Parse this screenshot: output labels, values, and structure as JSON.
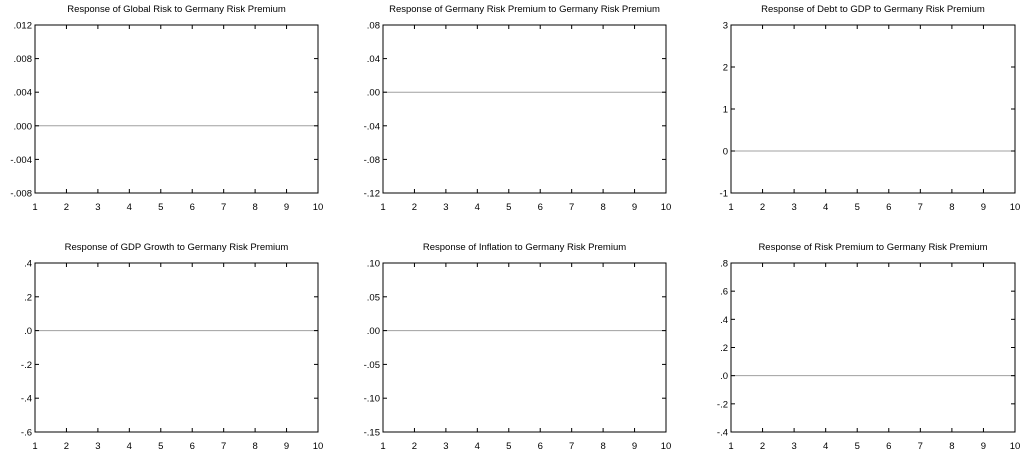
{
  "chart_data": [
    {
      "type": "line",
      "title": "Response of Global Risk to Germany Risk Premium",
      "x": [
        1,
        2,
        3,
        4,
        5,
        6,
        7,
        8,
        9,
        10
      ],
      "xlim": [
        1,
        10
      ],
      "ylim": [
        -0.008,
        0.012
      ],
      "y_ticks": [
        ".012",
        ".008",
        ".004",
        ".000",
        "-.004",
        "-.008"
      ],
      "y_tick_values": [
        0.012,
        0.008,
        0.004,
        0.0,
        -0.004,
        -0.008
      ],
      "x_ticks": [
        "1",
        "2",
        "3",
        "4",
        "5",
        "6",
        "7",
        "8",
        "9",
        "10"
      ],
      "zero_line": 0,
      "series": [],
      "grid": false
    },
    {
      "type": "line",
      "title": "Response of Germany Risk Premium to Germany Risk Premium",
      "x": [
        1,
        2,
        3,
        4,
        5,
        6,
        7,
        8,
        9,
        10
      ],
      "xlim": [
        1,
        10
      ],
      "ylim": [
        -0.12,
        0.08
      ],
      "y_ticks": [
        ".08",
        ".04",
        ".00",
        "-.04",
        "-.08",
        "-.12"
      ],
      "y_tick_values": [
        0.08,
        0.04,
        0.0,
        -0.04,
        -0.08,
        -0.12
      ],
      "x_ticks": [
        "1",
        "2",
        "3",
        "4",
        "5",
        "6",
        "7",
        "8",
        "9",
        "10"
      ],
      "zero_line": 0,
      "series": [],
      "grid": false
    },
    {
      "type": "line",
      "title": "Response of Debt to GDP to Germany Risk Premium",
      "x": [
        1,
        2,
        3,
        4,
        5,
        6,
        7,
        8,
        9,
        10
      ],
      "xlim": [
        1,
        10
      ],
      "ylim": [
        -1,
        3
      ],
      "y_ticks": [
        "3",
        "2",
        "1",
        "0",
        "-1"
      ],
      "y_tick_values": [
        3,
        2,
        1,
        0,
        -1
      ],
      "x_ticks": [
        "1",
        "2",
        "3",
        "4",
        "5",
        "6",
        "7",
        "8",
        "9",
        "10"
      ],
      "zero_line": 0,
      "series": [],
      "grid": false
    },
    {
      "type": "line",
      "title": "Response of GDP Growth to Germany Risk Premium",
      "x": [
        1,
        2,
        3,
        4,
        5,
        6,
        7,
        8,
        9,
        10
      ],
      "xlim": [
        1,
        10
      ],
      "ylim": [
        -0.6,
        0.4
      ],
      "y_ticks": [
        ".4",
        ".2",
        ".0",
        "-.2",
        "-.4",
        "-.6"
      ],
      "y_tick_values": [
        0.4,
        0.2,
        0.0,
        -0.2,
        -0.4,
        -0.6
      ],
      "x_ticks": [
        "1",
        "2",
        "3",
        "4",
        "5",
        "6",
        "7",
        "8",
        "9",
        "10"
      ],
      "zero_line": 0,
      "series": [],
      "grid": false
    },
    {
      "type": "line",
      "title": "Response of Inflation to Germany Risk Premium",
      "x": [
        1,
        2,
        3,
        4,
        5,
        6,
        7,
        8,
        9,
        10
      ],
      "xlim": [
        1,
        10
      ],
      "ylim": [
        -0.15,
        0.1
      ],
      "y_ticks": [
        ".10",
        ".05",
        ".00",
        "-.05",
        "-.10",
        "-.15"
      ],
      "y_tick_values": [
        0.1,
        0.05,
        0.0,
        -0.05,
        -0.1,
        -0.15
      ],
      "x_ticks": [
        "1",
        "2",
        "3",
        "4",
        "5",
        "6",
        "7",
        "8",
        "9",
        "10"
      ],
      "zero_line": 0,
      "series": [],
      "grid": false
    },
    {
      "type": "line",
      "title": "Response of Risk Premium to Germany Risk Premium",
      "x": [
        1,
        2,
        3,
        4,
        5,
        6,
        7,
        8,
        9,
        10
      ],
      "xlim": [
        1,
        10
      ],
      "ylim": [
        -0.4,
        0.8
      ],
      "y_ticks": [
        ".8",
        ".6",
        ".4",
        ".2",
        ".0",
        "-.2",
        "-.4"
      ],
      "y_tick_values": [
        0.8,
        0.6,
        0.4,
        0.2,
        0.0,
        -0.2,
        -0.4
      ],
      "x_ticks": [
        "1",
        "2",
        "3",
        "4",
        "5",
        "6",
        "7",
        "8",
        "9",
        "10"
      ],
      "zero_line": 0,
      "series": [],
      "grid": false
    }
  ],
  "colors": {
    "axis": "#000000",
    "zero_line": "#a0a0a0",
    "background": "#ffffff"
  }
}
